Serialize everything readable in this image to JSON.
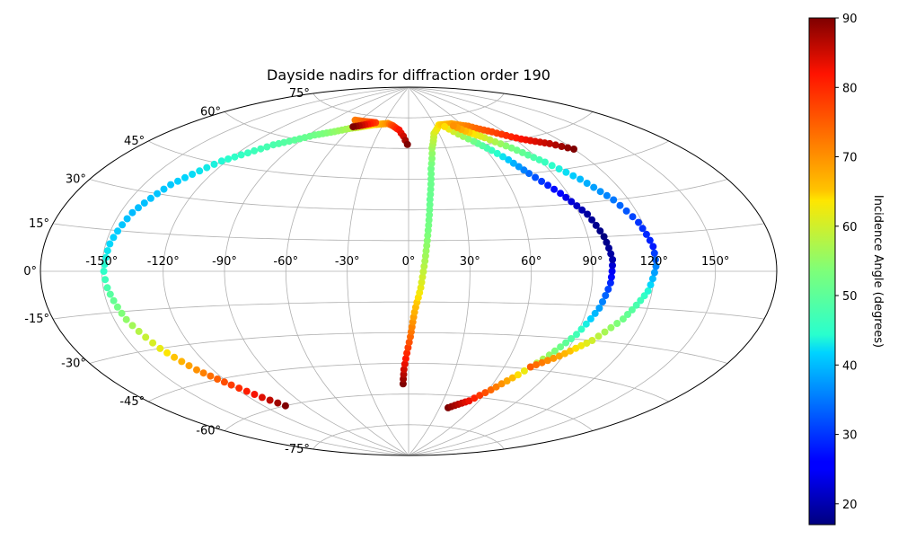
{
  "chart_data": {
    "type": "scatter",
    "projection": "aitoff",
    "title": "Dayside nadirs for diffraction order 190",
    "xlabel": "",
    "ylabel": "",
    "grid": true,
    "lon_ticks": [
      "-150°",
      "-120°",
      "-90°",
      "-60°",
      "-30°",
      "0°",
      "30°",
      "60°",
      "90°",
      "120°",
      "150°"
    ],
    "lat_ticks_left": [
      "75°",
      "60°",
      "45°",
      "30°",
      "15°",
      "0°",
      "-15°",
      "-30°",
      "-45°",
      "-60°",
      "-75°"
    ],
    "colorbar": {
      "label": "Incidence Angle (degrees)",
      "colormap": "jet",
      "range": [
        17,
        90
      ],
      "ticks": [
        "20",
        "30",
        "40",
        "50",
        "60",
        "70",
        "80",
        "90"
      ]
    },
    "series": [
      {
        "points": [
          {
            "lon": -105,
            "lat": -60,
            "inc": 90
          },
          {
            "lon": -112,
            "lat": -55,
            "inc": 84
          },
          {
            "lon": -120,
            "lat": -48,
            "inc": 78
          },
          {
            "lon": -129,
            "lat": -40,
            "inc": 70
          },
          {
            "lon": -137,
            "lat": -30,
            "inc": 62
          },
          {
            "lon": -144,
            "lat": -18,
            "inc": 55
          },
          {
            "lon": -148,
            "lat": -6,
            "inc": 48
          },
          {
            "lon": -149,
            "lat": 0,
            "inc": 45
          },
          {
            "lon": -148,
            "lat": 10,
            "inc": 42
          },
          {
            "lon": -144,
            "lat": 22,
            "inc": 40
          },
          {
            "lon": -136,
            "lat": 34,
            "inc": 41
          },
          {
            "lon": -123,
            "lat": 46,
            "inc": 44
          },
          {
            "lon": -105,
            "lat": 56,
            "inc": 48
          },
          {
            "lon": -85,
            "lat": 63,
            "inc": 52
          },
          {
            "lon": -62,
            "lat": 68,
            "inc": 57
          },
          {
            "lon": -40,
            "lat": 71,
            "inc": 64
          },
          {
            "lon": -25,
            "lat": 72,
            "inc": 70
          },
          {
            "lon": -18,
            "lat": 71,
            "inc": 77
          },
          {
            "lon": -10,
            "lat": 69,
            "inc": 82
          },
          {
            "lon": -5,
            "lat": 66,
            "inc": 85
          },
          {
            "lon": -1,
            "lat": 62,
            "inc": 90
          }
        ]
      },
      {
        "points": [
          {
            "lon": -4,
            "lat": -55,
            "inc": 90
          },
          {
            "lon": -3,
            "lat": -48,
            "inc": 85
          },
          {
            "lon": -1,
            "lat": -40,
            "inc": 80
          },
          {
            "lon": 1,
            "lat": -32,
            "inc": 74
          },
          {
            "lon": 3,
            "lat": -20,
            "inc": 67
          },
          {
            "lon": 6,
            "lat": -8,
            "inc": 62
          },
          {
            "lon": 8,
            "lat": 5,
            "inc": 57
          },
          {
            "lon": 10,
            "lat": 20,
            "inc": 53
          },
          {
            "lon": 12,
            "lat": 35,
            "inc": 51
          },
          {
            "lon": 15,
            "lat": 50,
            "inc": 52
          },
          {
            "lon": 19,
            "lat": 60,
            "inc": 56
          },
          {
            "lon": 25,
            "lat": 67,
            "inc": 60
          },
          {
            "lon": 35,
            "lat": 71,
            "inc": 64
          },
          {
            "lon": 50,
            "lat": 71,
            "inc": 68
          },
          {
            "lon": 65,
            "lat": 69,
            "inc": 72
          },
          {
            "lon": 80,
            "lat": 65,
            "inc": 77
          },
          {
            "lon": 95,
            "lat": 60,
            "inc": 82
          },
          {
            "lon": 110,
            "lat": 56,
            "inc": 86
          },
          {
            "lon": 120,
            "lat": 52,
            "inc": 90
          }
        ]
      },
      {
        "points": [
          {
            "lon": 38,
            "lat": -66,
            "inc": 90
          },
          {
            "lon": 52,
            "lat": -62,
            "inc": 83
          },
          {
            "lon": 62,
            "lat": -56,
            "inc": 74
          },
          {
            "lon": 72,
            "lat": -48,
            "inc": 64
          },
          {
            "lon": 82,
            "lat": -38,
            "inc": 55
          },
          {
            "lon": 90,
            "lat": -28,
            "inc": 47
          },
          {
            "lon": 96,
            "lat": -16,
            "inc": 38
          },
          {
            "lon": 99,
            "lat": -5,
            "inc": 29
          },
          {
            "lon": 100,
            "lat": 5,
            "inc": 20
          },
          {
            "lon": 98,
            "lat": 15,
            "inc": 17
          },
          {
            "lon": 94,
            "lat": 25,
            "inc": 19
          },
          {
            "lon": 86,
            "lat": 35,
            "inc": 25
          },
          {
            "lon": 76,
            "lat": 45,
            "inc": 34
          },
          {
            "lon": 70,
            "lat": 52,
            "inc": 41
          },
          {
            "lon": 64,
            "lat": 57,
            "inc": 46
          },
          {
            "lon": 56,
            "lat": 62,
            "inc": 52
          },
          {
            "lon": 48,
            "lat": 66,
            "inc": 58
          },
          {
            "lon": 40,
            "lat": 70,
            "inc": 64
          }
        ]
      },
      {
        "points": [
          {
            "lon": 76,
            "lat": -44,
            "inc": 75
          },
          {
            "lon": 88,
            "lat": -38,
            "inc": 68
          },
          {
            "lon": 100,
            "lat": -30,
            "inc": 60
          },
          {
            "lon": 110,
            "lat": -20,
            "inc": 52
          },
          {
            "lon": 118,
            "lat": -8,
            "inc": 44
          },
          {
            "lon": 121,
            "lat": 2,
            "inc": 36
          },
          {
            "lon": 121,
            "lat": 10,
            "inc": 28
          },
          {
            "lon": 118,
            "lat": 20,
            "inc": 30
          },
          {
            "lon": 112,
            "lat": 30,
            "inc": 35
          },
          {
            "lon": 103,
            "lat": 40,
            "inc": 40
          },
          {
            "lon": 92,
            "lat": 49,
            "inc": 46
          },
          {
            "lon": 80,
            "lat": 57,
            "inc": 53
          },
          {
            "lon": 68,
            "lat": 63,
            "inc": 60
          },
          {
            "lon": 57,
            "lat": 67,
            "inc": 66
          },
          {
            "lon": 50,
            "lat": 70,
            "inc": 70
          }
        ]
      },
      {
        "points": [
          {
            "lon": -66,
            "lat": 72,
            "inc": 72
          },
          {
            "lon": -56,
            "lat": 72,
            "inc": 74
          },
          {
            "lon": -48,
            "lat": 72,
            "inc": 76
          },
          {
            "lon": -40,
            "lat": 72,
            "inc": 78
          },
          {
            "lon": -60,
            "lat": 69,
            "inc": 90
          }
        ]
      }
    ]
  }
}
